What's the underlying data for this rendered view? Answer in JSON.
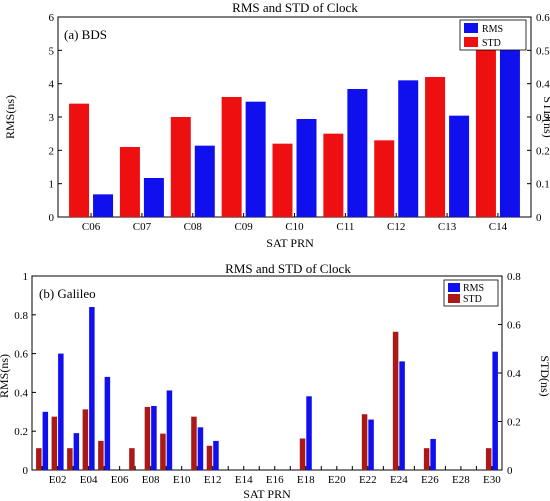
{
  "chart_data": [
    {
      "type": "bar",
      "panel_label": "(a) BDS",
      "title": "RMS and STD of Clock",
      "xlabel": "SAT  PRN",
      "ylabel_left": "RMS(ns)",
      "ylabel_right": "STD(ns)",
      "ylim_left": [
        0,
        6
      ],
      "ylim_right": [
        0,
        0.6
      ],
      "yticks_left": [
        "0",
        "1",
        "2",
        "3",
        "4",
        "5",
        "6"
      ],
      "yticks_right": [
        "0",
        "0.1",
        "0.2",
        "0.3",
        "0.4",
        "0.5",
        "0.6"
      ],
      "categories": [
        "C06",
        "C07",
        "C08",
        "C09",
        "C10",
        "C11",
        "C12",
        "C13",
        "C14"
      ],
      "series": [
        {
          "name": "RMS",
          "axis": "left",
          "color": "#1010ee",
          "values": [
            0.68,
            1.17,
            2.14,
            3.46,
            2.94,
            3.84,
            4.1,
            3.04,
            5.68
          ]
        },
        {
          "name": "STD",
          "axis": "right",
          "color": "#ee1010",
          "values": [
            0.34,
            0.21,
            0.3,
            0.36,
            0.22,
            0.25,
            0.23,
            0.42,
            0.56
          ]
        }
      ],
      "legend_position": "top-right",
      "grid": false
    },
    {
      "type": "bar",
      "panel_label": "(b) Galileo",
      "title": "RMS and STD of Clock",
      "xlabel": "SAT  PRN",
      "ylabel_left": "RMS(ns)",
      "ylabel_right": "STD(ns)",
      "ylim_left": [
        0,
        1
      ],
      "ylim_right": [
        0,
        0.8
      ],
      "yticks_left": [
        "0",
        "0.2",
        "0.4",
        "0.6",
        "0.8",
        "1"
      ],
      "yticks_right": [
        "0",
        "0.2",
        "0.4",
        "0.6",
        "0.8"
      ],
      "categories": [
        "E01",
        "E02",
        "E03",
        "E04",
        "E05",
        "E06",
        "E07",
        "E08",
        "E09",
        "E10",
        "E11",
        "E12",
        "E13",
        "E14",
        "E15",
        "E16",
        "E17",
        "E18",
        "E19",
        "E20",
        "E21",
        "E22",
        "E23",
        "E24",
        "E25",
        "E26",
        "E27",
        "E28",
        "E29",
        "E30"
      ],
      "category_labels": [
        "",
        "E02",
        "",
        "E04",
        "",
        "E06",
        "",
        "E08",
        "",
        "E10",
        "",
        "E12",
        "",
        "E14",
        "",
        "E16",
        "",
        "E18",
        "",
        "E20",
        "",
        "E22",
        "",
        "E24",
        "",
        "E26",
        "",
        "E28",
        "",
        "E30"
      ],
      "series": [
        {
          "name": "RMS",
          "axis": "left",
          "color": "#1010ee",
          "values": [
            0.3,
            0.6,
            0.19,
            0.84,
            0.48,
            0,
            0,
            0.33,
            0.41,
            0,
            0.22,
            0.15,
            0,
            0,
            0,
            0,
            0,
            0.38,
            0,
            0,
            0,
            0.26,
            0,
            0.56,
            0,
            0.16,
            0,
            0,
            0,
            0.61
          ]
        },
        {
          "name": "STD",
          "axis": "right",
          "color": "#aa1818",
          "values": [
            0.09,
            0.22,
            0.09,
            0.25,
            0.12,
            0,
            0.09,
            0.26,
            0.15,
            0,
            0.22,
            0.1,
            0,
            0,
            0,
            0,
            0,
            0.13,
            0,
            0,
            0,
            0.23,
            0,
            0.57,
            0,
            0.09,
            0,
            0,
            0,
            0.09
          ]
        }
      ],
      "legend_position": "top-right",
      "grid": false
    }
  ]
}
